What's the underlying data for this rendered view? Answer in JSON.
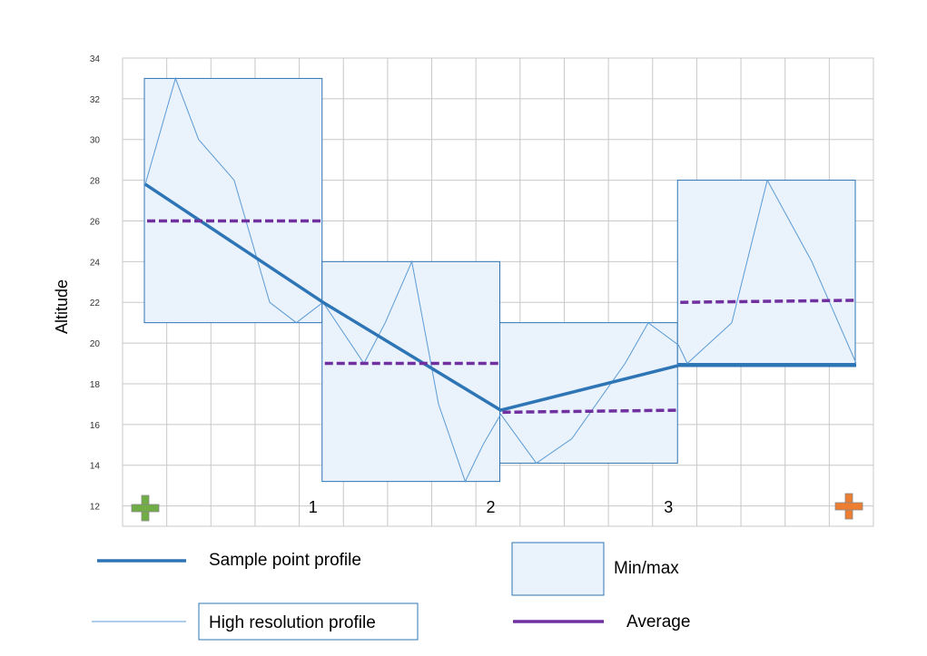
{
  "chart_data": {
    "type": "line",
    "ylabel": "Altitude",
    "xlabel": "",
    "ylim": [
      11,
      34
    ],
    "y_ticks": [
      12,
      14,
      16,
      18,
      20,
      22,
      24,
      26,
      28,
      30,
      32,
      34
    ],
    "x_markers": [
      {
        "label": "1",
        "x": 1
      },
      {
        "label": "2",
        "x": 2
      },
      {
        "label": "3",
        "x": 3
      }
    ],
    "start_marker": {
      "icon": "plus-icon",
      "color": "#70ad47"
    },
    "end_marker": {
      "icon": "plus-icon",
      "color": "#ed7d31"
    },
    "colors": {
      "sample": "#2e75b6",
      "high_res": "#5b9bd5",
      "average": "#7030a0",
      "minmax_fill": "#eaf2fb",
      "minmax_stroke": "#2e75b6",
      "grid": "#c8c8c8"
    },
    "series": [
      {
        "name": "Sample point profile",
        "x": [
          0,
          1,
          2,
          3,
          4
        ],
        "values": [
          27.8,
          22,
          16.7,
          18.9,
          18.9
        ]
      },
      {
        "name": "High resolution profile",
        "x": [
          0,
          0.17,
          0.3,
          0.5,
          0.7,
          0.85,
          1.0,
          1.23,
          1.35,
          1.5,
          1.65,
          1.8,
          1.9,
          2.0,
          2.2,
          2.4,
          2.7,
          2.83,
          3.0,
          3.05,
          3.3,
          3.5,
          3.75,
          4.0
        ],
        "values": [
          27.8,
          33,
          30,
          28,
          22,
          21,
          22,
          19,
          21,
          24,
          17,
          13.2,
          15,
          16.5,
          14.1,
          15.3,
          19,
          21,
          19.9,
          19,
          21,
          28,
          24,
          19
        ]
      }
    ],
    "minmax": {
      "name": "Min/max",
      "segments": [
        {
          "x0": 0,
          "x1": 1,
          "min": 21,
          "max": 33
        },
        {
          "x0": 1,
          "x1": 2,
          "min": 13.2,
          "max": 24
        },
        {
          "x0": 2,
          "x1": 3,
          "min": 14.1,
          "max": 21
        },
        {
          "x0": 3,
          "x1": 4,
          "min": 19,
          "max": 28
        }
      ]
    },
    "average": {
      "name": "Average",
      "segments": [
        {
          "x0": 0,
          "x1": 1,
          "y0": 26,
          "y1": 26
        },
        {
          "x0": 1,
          "x1": 2,
          "y0": 19,
          "y1": 19
        },
        {
          "x0": 2,
          "x1": 3,
          "y0": 16.6,
          "y1": 16.7
        },
        {
          "x0": 3,
          "x1": 4,
          "y0": 22,
          "y1": 22.1
        }
      ]
    },
    "legend": [
      {
        "label": "Sample point profile",
        "kind": "thick-line"
      },
      {
        "label": "High resolution profile",
        "kind": "thin-line"
      },
      {
        "label": "Min/max",
        "kind": "box"
      },
      {
        "label": "Average",
        "kind": "dashed-line"
      }
    ]
  }
}
